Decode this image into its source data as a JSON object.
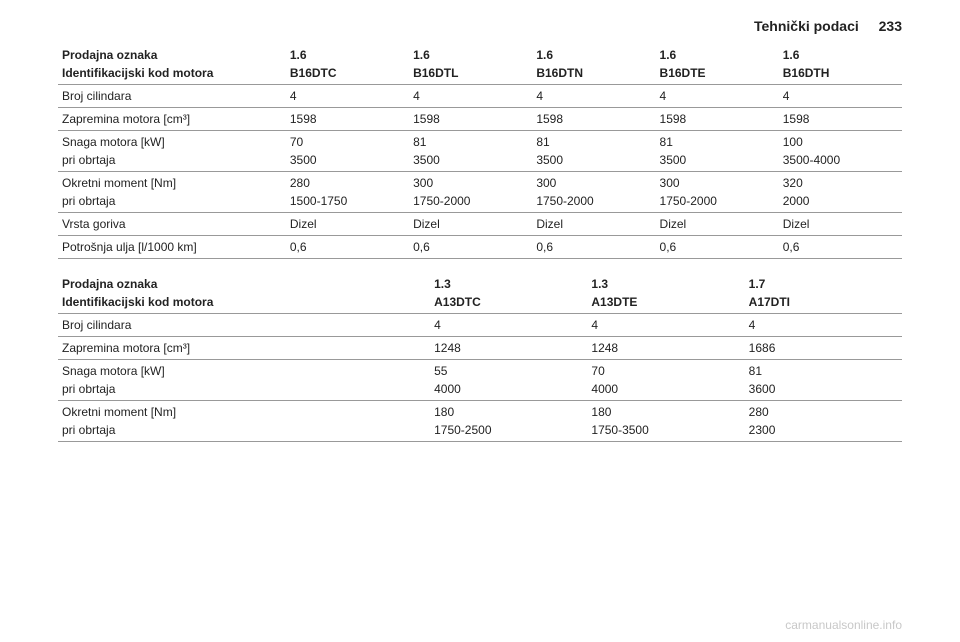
{
  "header": {
    "title": "Tehnički podaci",
    "page_number": "233"
  },
  "table1": {
    "columns_count": 6,
    "rows": [
      {
        "style": "bold no-border",
        "cells": [
          "Prodajna oznaka",
          "1.6",
          "1.6",
          "1.6",
          "1.6",
          "1.6"
        ]
      },
      {
        "style": "bold",
        "cells": [
          "Identifikacijski kod motora",
          "B16DTC",
          "B16DTL",
          "B16DTN",
          "B16DTE",
          "B16DTH"
        ]
      },
      {
        "style": "",
        "cells": [
          "Broj cilindara",
          "4",
          "4",
          "4",
          "4",
          "4"
        ]
      },
      {
        "style": "",
        "cells": [
          "Zapremina motora [cm³]",
          "1598",
          "1598",
          "1598",
          "1598",
          "1598"
        ]
      },
      {
        "style": "no-border",
        "cells": [
          "Snaga motora [kW]",
          "70",
          "81",
          "81",
          "81",
          "100"
        ]
      },
      {
        "style": "",
        "cells": [
          "pri obrtaja",
          "3500",
          "3500",
          "3500",
          "3500",
          "3500-4000"
        ]
      },
      {
        "style": "no-border",
        "cells": [
          "Okretni moment [Nm]",
          "280",
          "300",
          "300",
          "300",
          "320"
        ]
      },
      {
        "style": "",
        "cells": [
          "pri obrtaja",
          "1500-1750",
          "1750-2000",
          "1750-2000",
          "1750-2000",
          "2000"
        ]
      },
      {
        "style": "",
        "cells": [
          "Vrsta goriva",
          "Dizel",
          "Dizel",
          "Dizel",
          "Dizel",
          "Dizel"
        ]
      },
      {
        "style": "",
        "cells": [
          "Potrošnja ulja [l/1000 km]",
          "0,6",
          "0,6",
          "0,6",
          "0,6",
          "0,6"
        ]
      }
    ]
  },
  "table2": {
    "columns_count": 4,
    "rows": [
      {
        "style": "bold no-border",
        "cells": [
          "Prodajna oznaka",
          "1.3",
          "1.3",
          "1.7"
        ]
      },
      {
        "style": "bold",
        "cells": [
          "Identifikacijski kod motora",
          "A13DTC",
          "A13DTE",
          "A17DTI"
        ]
      },
      {
        "style": "",
        "cells": [
          "Broj cilindara",
          "4",
          "4",
          "4"
        ]
      },
      {
        "style": "",
        "cells": [
          "Zapremina motora [cm³]",
          "1248",
          "1248",
          "1686"
        ]
      },
      {
        "style": "no-border",
        "cells": [
          "Snaga motora [kW]",
          "55",
          "70",
          "81"
        ]
      },
      {
        "style": "",
        "cells": [
          "pri obrtaja",
          "4000",
          "4000",
          "3600"
        ]
      },
      {
        "style": "no-border",
        "cells": [
          "Okretni moment [Nm]",
          "180",
          "180",
          "280"
        ]
      },
      {
        "style": "",
        "cells": [
          "pri obrtaja",
          "1750-2500",
          "1750-3500",
          "2300"
        ]
      }
    ]
  },
  "table1_col_widths": [
    "27%",
    "14.6%",
    "14.6%",
    "14.6%",
    "14.6%",
    "14.6%"
  ],
  "table2_col_widths": [
    "44%",
    "18.6%",
    "18.6%",
    "18.6%"
  ],
  "watermark": "carmanualsonline.info"
}
